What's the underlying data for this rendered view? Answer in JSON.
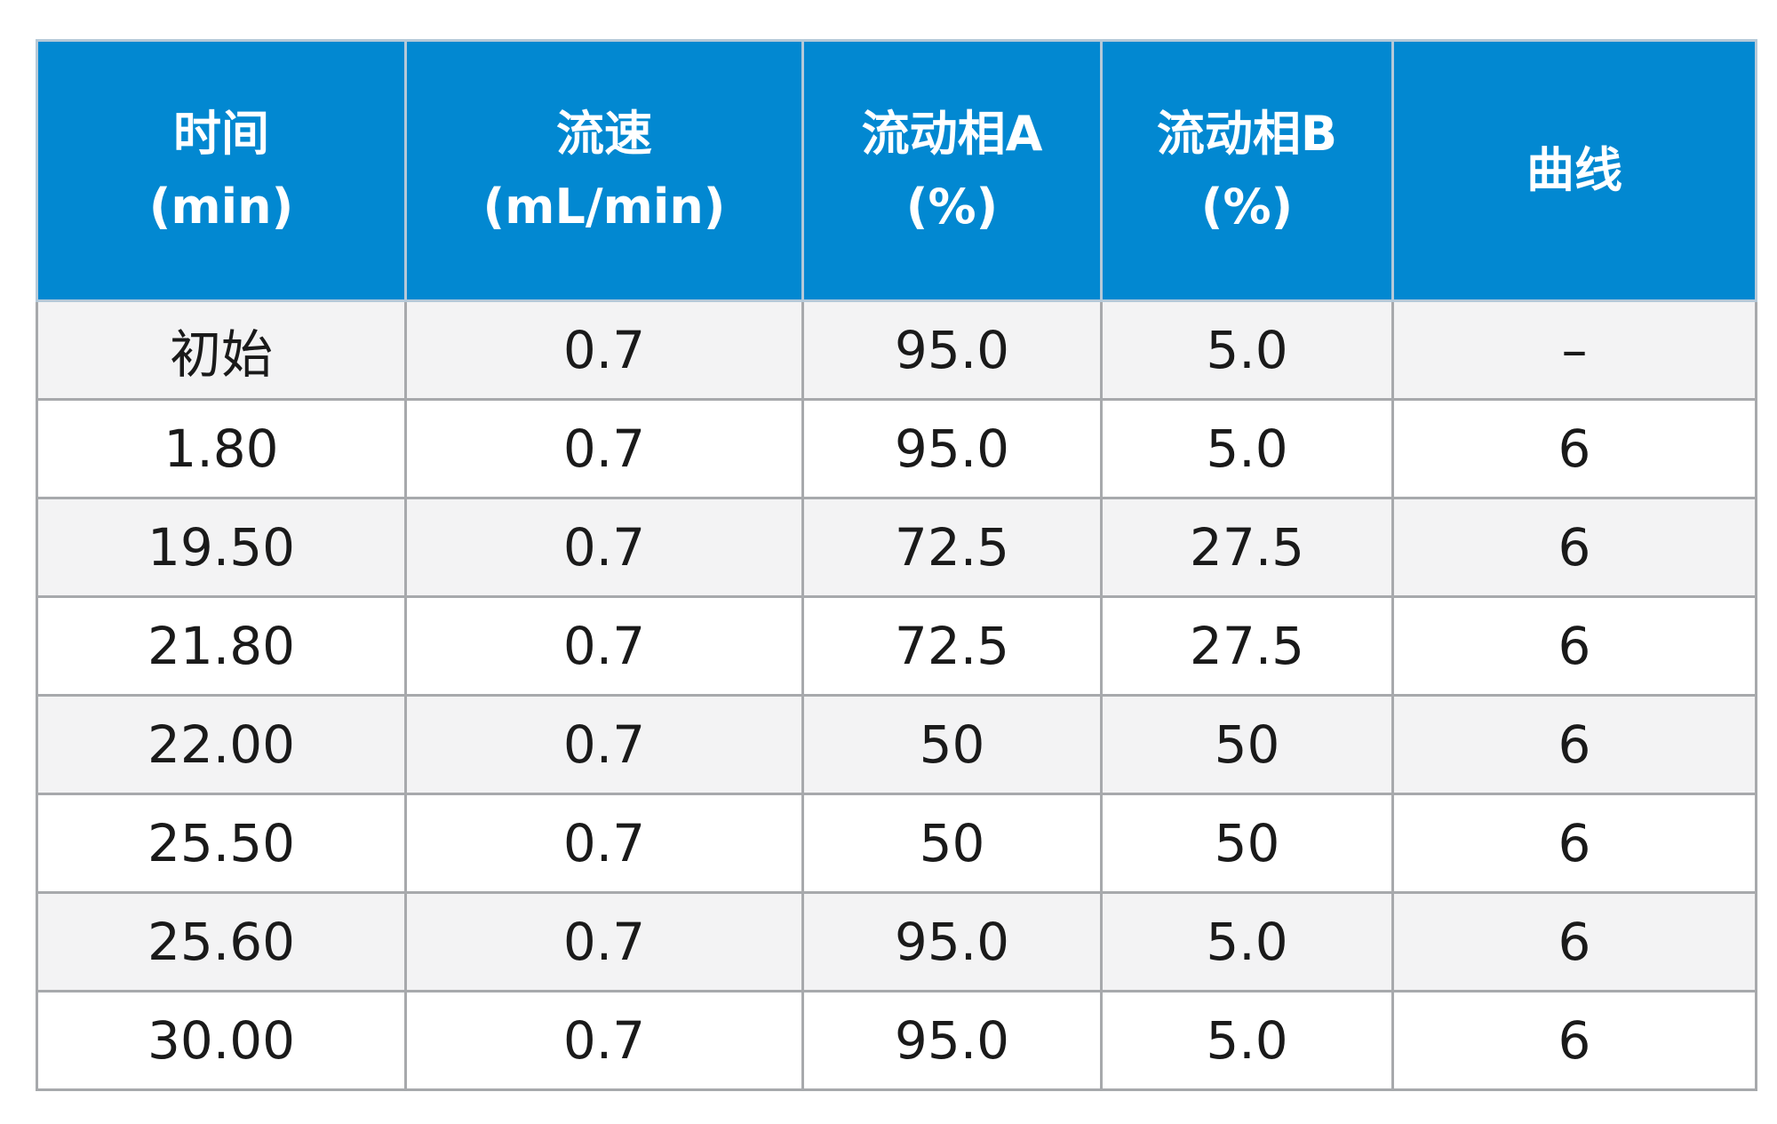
{
  "table": {
    "headers": [
      {
        "line1": "时间",
        "line2": "(min)"
      },
      {
        "line1": "流速",
        "line2": "(mL/min)"
      },
      {
        "line1": "流动相A",
        "line2": "(%)"
      },
      {
        "line1": "流动相B",
        "line2": "(%)"
      },
      {
        "line1": "曲线",
        "line2": ""
      }
    ],
    "rows": [
      [
        "初始",
        "0.7",
        "95.0",
        "5.0",
        "–"
      ],
      [
        "1.80",
        "0.7",
        "95.0",
        "5.0",
        "6"
      ],
      [
        "19.50",
        "0.7",
        "72.5",
        "27.5",
        "6"
      ],
      [
        "21.80",
        "0.7",
        "72.5",
        "27.5",
        "6"
      ],
      [
        "22.00",
        "0.7",
        "50",
        "50",
        "6"
      ],
      [
        "25.50",
        "0.7",
        "50",
        "50",
        "6"
      ],
      [
        "25.60",
        "0.7",
        "95.0",
        "5.0",
        "6"
      ],
      [
        "30.00",
        "0.7",
        "95.0",
        "5.0",
        "6"
      ]
    ]
  }
}
